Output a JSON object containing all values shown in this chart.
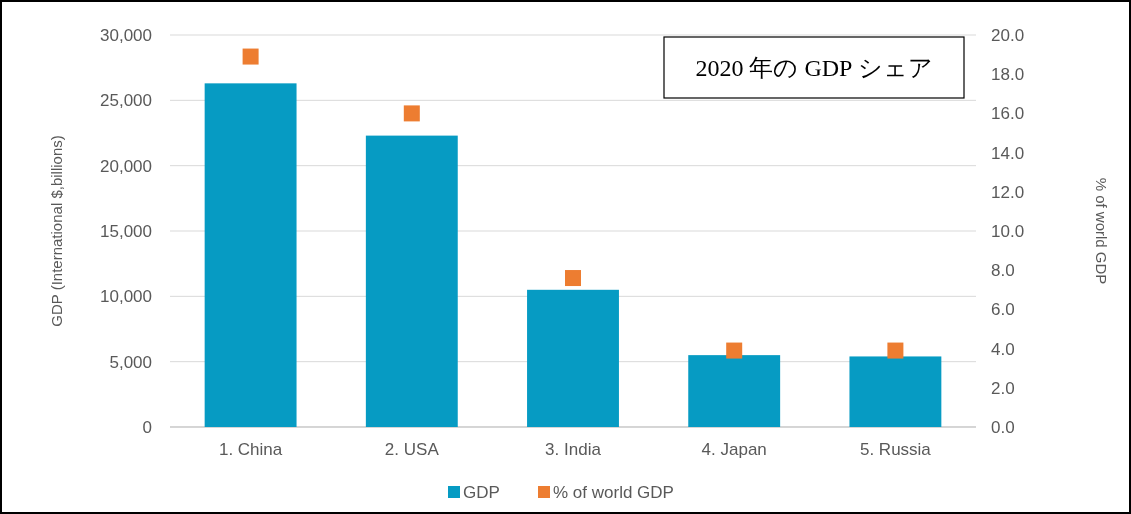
{
  "chart_data": {
    "type": "bar",
    "title": "2020 年の GDP シェア",
    "ylabel": "GDP (International $,billions)",
    "y2label": "% of world GDP",
    "categories": [
      "1. China",
      "2. USA",
      "3. India",
      "4. Japan",
      "5. Russia"
    ],
    "series": [
      {
        "name": "GDP",
        "color": "#069bc3",
        "values": [
          26300,
          22300,
          10500,
          5500,
          5400
        ]
      },
      {
        "name": "% of world GDP",
        "type": "scatter",
        "axis": "y2",
        "color": "#ed7d31",
        "values": [
          18.9,
          16.0,
          7.6,
          3.9,
          3.9
        ]
      }
    ],
    "ylim": [
      0,
      30000
    ],
    "yticks": [
      {
        "value": 0,
        "label": "0"
      },
      {
        "value": 5000,
        "label": "5,000"
      },
      {
        "value": 10000,
        "label": "10,000"
      },
      {
        "value": 15000,
        "label": "15,000"
      },
      {
        "value": 20000,
        "label": "20,000"
      },
      {
        "value": 25000,
        "label": "25,000"
      },
      {
        "value": 30000,
        "label": "30,000"
      }
    ],
    "y2lim": [
      0,
      20
    ],
    "y2ticks": [
      {
        "value": 0,
        "label": "0.0"
      },
      {
        "value": 2,
        "label": "2.0"
      },
      {
        "value": 4,
        "label": "4.0"
      },
      {
        "value": 6,
        "label": "6.0"
      },
      {
        "value": 8,
        "label": "8.0"
      },
      {
        "value": 10,
        "label": "10.0"
      },
      {
        "value": 12,
        "label": "12.0"
      },
      {
        "value": 14,
        "label": "14.0"
      },
      {
        "value": 16,
        "label": "16.0"
      },
      {
        "value": 18,
        "label": "18.0"
      },
      {
        "value": 20,
        "label": "20.0"
      }
    ],
    "grid": "y",
    "legend": "bottom",
    "marker": "square"
  }
}
